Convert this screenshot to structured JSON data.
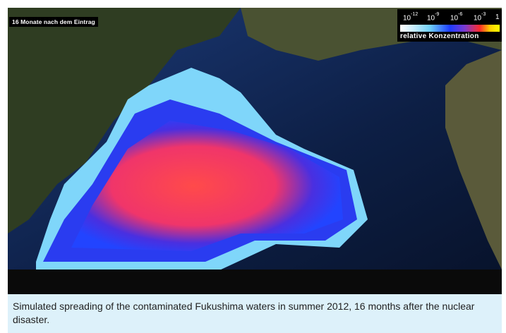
{
  "figure": {
    "time_label": "16 Monate nach dem Eintrag",
    "legend": {
      "title": "relative  Konzentration",
      "ticks": [
        {
          "base": "10",
          "exp": "-12"
        },
        {
          "base": "10",
          "exp": "-9"
        },
        {
          "base": "10",
          "exp": "-6"
        },
        {
          "base": "10",
          "exp": "-3"
        },
        {
          "base": "1",
          "exp": ""
        }
      ],
      "colors": [
        "#ffffff",
        "#6fd0f8",
        "#1d3cff",
        "#ff2a2a",
        "#ffff00"
      ]
    }
  },
  "caption": "Simulated spreading of the contaminated Fukushima waters in summer 2012, 16 months after the nuclear disaster."
}
